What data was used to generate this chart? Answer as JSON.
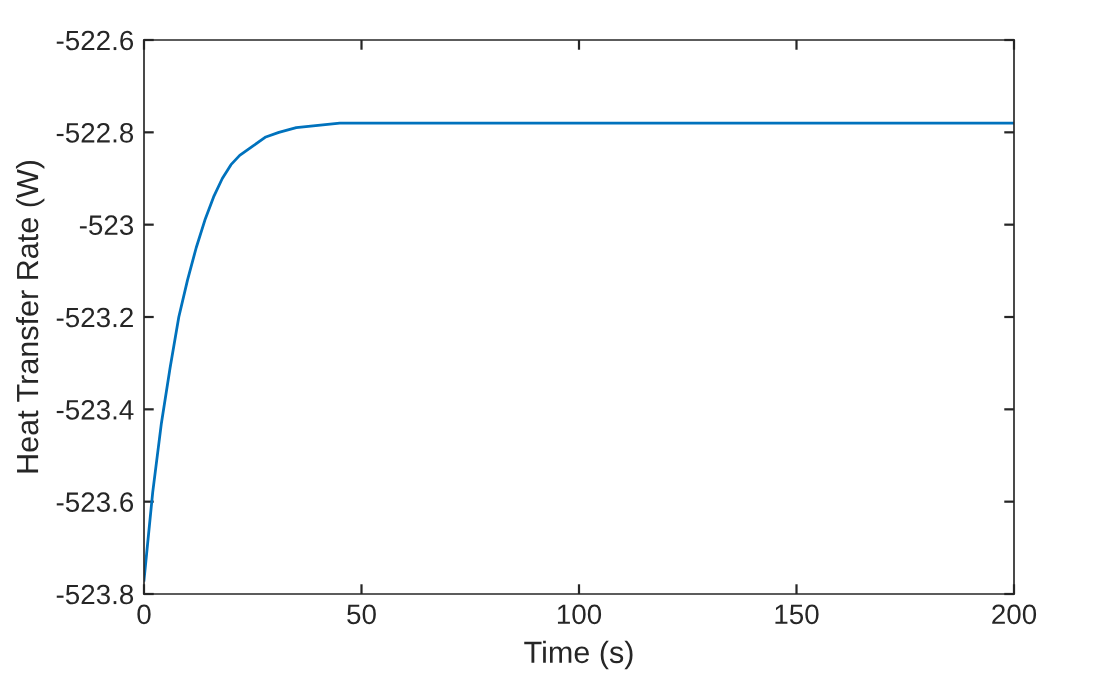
{
  "chart_data": {
    "type": "line",
    "xlabel": "Time (s)",
    "ylabel": "Heat Transfer Rate (W)",
    "series": [
      {
        "color": "#0072bd",
        "x": [
          0,
          2,
          4,
          6,
          8,
          10,
          12,
          14,
          16,
          18,
          20,
          22,
          25,
          28,
          31,
          35,
          40,
          45,
          50,
          60,
          80,
          100,
          150,
          200
        ],
        "values": [
          -523.77,
          -523.58,
          -523.43,
          -523.31,
          -523.2,
          -523.12,
          -523.05,
          -522.99,
          -522.94,
          -522.9,
          -522.87,
          -522.85,
          -522.83,
          -522.81,
          -522.8,
          -522.79,
          -522.785,
          -522.78,
          -522.78,
          -522.78,
          -522.78,
          -522.78,
          -522.78,
          -522.78
        ]
      }
    ],
    "xlim": [
      0,
      200
    ],
    "xticks": [
      0,
      50,
      100,
      150,
      200
    ],
    "ylim": [
      -523.8,
      -522.6
    ],
    "yticks": [
      -523.8,
      -523.6,
      -523.4,
      -523.2,
      -523,
      -522.8,
      -522.6
    ],
    "grid": false,
    "legend": false,
    "line_style": "solid",
    "marker": "none"
  }
}
